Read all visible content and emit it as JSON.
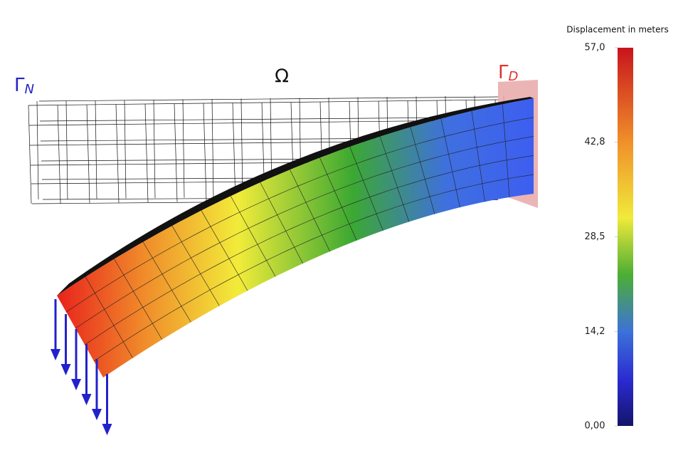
{
  "labels": {
    "neumann": {
      "symbol": "Γ",
      "subscript": "N"
    },
    "domain": "Ω",
    "dirichlet": {
      "symbol": "Γ",
      "subscript": "D"
    }
  },
  "colorbar": {
    "title": "Displacement in meters",
    "lim": [
      0,
      57.0
    ],
    "ticks": [
      {
        "value": 57.0,
        "label": "57,0"
      },
      {
        "value": 42.8,
        "label": "42,8"
      },
      {
        "value": 28.5,
        "label": "28,5"
      },
      {
        "value": 14.2,
        "label": "14,2"
      },
      {
        "value": 0,
        "label": "0,00"
      }
    ]
  }
}
